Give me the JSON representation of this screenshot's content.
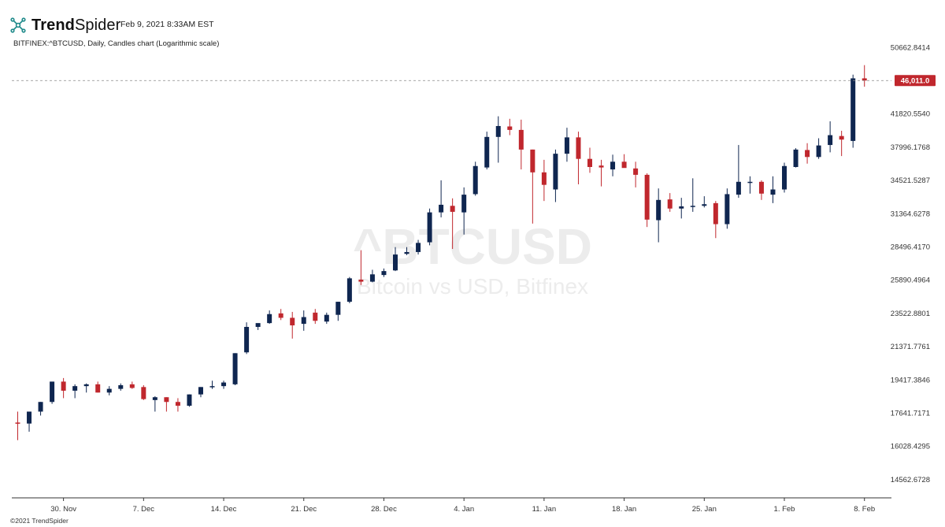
{
  "header": {
    "brand_bold": "Trend",
    "brand_regular": "Spider",
    "timestamp": "Feb 9, 2021 8:33AM EST",
    "subtitle": "BITFINEX:^BTCUSD, Daily, Candles chart (Logarithmic scale)",
    "logo_icon": "trendspider-logo-icon"
  },
  "footer": {
    "copyright": "©2021 TrendSpider"
  },
  "watermark": {
    "symbol": "^BTCUSD",
    "description": "Bitcoin vs USD, Bitfinex"
  },
  "colors": {
    "up": "#0f2650",
    "down": "#c0272d",
    "grid_line": "#888888",
    "price_tag": "#c0272d"
  },
  "chart_data": {
    "type": "candlestick",
    "title": "BITFINEX:^BTCUSD, Daily, Candles chart (Logarithmic scale)",
    "scale": "logarithmic",
    "ylim": [
      13800,
      53000
    ],
    "y_ticks": [
      "50662.8414",
      "41820.5540",
      "37996.1768",
      "34521.5287",
      "31364.6278",
      "28496.4170",
      "25890.4964",
      "23522.8801",
      "21371.7761",
      "19417.3846",
      "17641.7171",
      "16028.4295",
      "14562.6728"
    ],
    "x_tick_labels": [
      "30. Nov",
      "7. Dec",
      "14. Dec",
      "21. Dec",
      "28. Dec",
      "4. Jan",
      "11. Jan",
      "18. Jan",
      "25. Jan",
      "1. Feb",
      "8. Feb"
    ],
    "x_tick_index": [
      4,
      11,
      18,
      25,
      32,
      39,
      46,
      53,
      60,
      67,
      74
    ],
    "current_price": 46011.0,
    "current_price_label": "46,011.0",
    "candles": [
      {
        "date": "2020-11-26",
        "open": 17150,
        "high": 17700,
        "low": 16300,
        "close": 17100
      },
      {
        "date": "2020-11-27",
        "open": 17100,
        "high": 17450,
        "low": 16700,
        "close": 17700
      },
      {
        "date": "2020-11-28",
        "open": 17700,
        "high": 18200,
        "low": 17500,
        "close": 18200
      },
      {
        "date": "2020-11-29",
        "open": 18200,
        "high": 19300,
        "low": 18100,
        "close": 19300
      },
      {
        "date": "2020-11-30",
        "open": 19300,
        "high": 19500,
        "low": 18400,
        "close": 18800
      },
      {
        "date": "2020-12-01",
        "open": 18800,
        "high": 19150,
        "low": 18400,
        "close": 19050
      },
      {
        "date": "2020-12-02",
        "open": 19050,
        "high": 19200,
        "low": 18700,
        "close": 19150
      },
      {
        "date": "2020-12-03",
        "open": 19150,
        "high": 19300,
        "low": 18700,
        "close": 18700
      },
      {
        "date": "2020-12-04",
        "open": 18700,
        "high": 19050,
        "low": 18550,
        "close": 18900
      },
      {
        "date": "2020-12-05",
        "open": 18900,
        "high": 19200,
        "low": 18800,
        "close": 19100
      },
      {
        "date": "2020-12-06",
        "open": 19150,
        "high": 19300,
        "low": 18900,
        "close": 18950
      },
      {
        "date": "2020-12-07",
        "open": 19000,
        "high": 19100,
        "low": 18300,
        "close": 18350
      },
      {
        "date": "2020-12-08",
        "open": 18300,
        "high": 18500,
        "low": 17700,
        "close": 18450
      },
      {
        "date": "2020-12-09",
        "open": 18450,
        "high": 18450,
        "low": 17700,
        "close": 18200
      },
      {
        "date": "2020-12-10",
        "open": 18200,
        "high": 18400,
        "low": 17700,
        "close": 18000
      },
      {
        "date": "2020-12-11",
        "open": 18000,
        "high": 18600,
        "low": 17950,
        "close": 18600
      },
      {
        "date": "2020-12-12",
        "open": 18600,
        "high": 19000,
        "low": 18450,
        "close": 19000
      },
      {
        "date": "2020-12-13",
        "open": 19000,
        "high": 19350,
        "low": 18900,
        "close": 19050
      },
      {
        "date": "2020-12-14",
        "open": 19050,
        "high": 19350,
        "low": 18900,
        "close": 19250
      },
      {
        "date": "2020-12-15",
        "open": 19150,
        "high": 20950,
        "low": 19100,
        "close": 20950
      },
      {
        "date": "2020-12-16",
        "open": 21000,
        "high": 22900,
        "low": 20900,
        "close": 22600
      },
      {
        "date": "2020-12-17",
        "open": 22600,
        "high": 22700,
        "low": 22400,
        "close": 22850
      },
      {
        "date": "2020-12-18",
        "open": 22850,
        "high": 23700,
        "low": 22800,
        "close": 23450
      },
      {
        "date": "2020-12-19",
        "open": 23500,
        "high": 23800,
        "low": 23050,
        "close": 23200
      },
      {
        "date": "2020-12-20",
        "open": 23200,
        "high": 23600,
        "low": 21850,
        "close": 22700
      },
      {
        "date": "2020-12-21",
        "open": 22800,
        "high": 23700,
        "low": 22350,
        "close": 23250
      },
      {
        "date": "2020-12-22",
        "open": 23550,
        "high": 23800,
        "low": 22800,
        "close": 23000
      },
      {
        "date": "2020-12-23",
        "open": 22950,
        "high": 23550,
        "low": 22800,
        "close": 23400
      },
      {
        "date": "2020-12-24",
        "open": 23400,
        "high": 24300,
        "low": 23000,
        "close": 24300
      },
      {
        "date": "2020-12-25",
        "open": 24300,
        "high": 26100,
        "low": 24200,
        "close": 26000
      },
      {
        "date": "2020-12-26",
        "open": 25900,
        "high": 28200,
        "low": 25500,
        "close": 25750
      },
      {
        "date": "2020-12-27",
        "open": 25750,
        "high": 26650,
        "low": 25700,
        "close": 26300
      },
      {
        "date": "2020-12-28",
        "open": 26250,
        "high": 26750,
        "low": 26100,
        "close": 26550
      },
      {
        "date": "2020-12-29",
        "open": 26600,
        "high": 28450,
        "low": 26550,
        "close": 27850
      },
      {
        "date": "2020-12-30",
        "open": 27900,
        "high": 28450,
        "low": 27800,
        "close": 28050
      },
      {
        "date": "2020-12-31",
        "open": 28050,
        "high": 29050,
        "low": 27850,
        "close": 28800
      },
      {
        "date": "2021-01-01",
        "open": 28850,
        "high": 31800,
        "low": 28600,
        "close": 31450
      },
      {
        "date": "2021-01-02",
        "open": 31450,
        "high": 34500,
        "low": 31000,
        "close": 32150
      },
      {
        "date": "2021-01-03",
        "open": 32050,
        "high": 32750,
        "low": 28300,
        "close": 31500
      },
      {
        "date": "2021-01-04",
        "open": 31450,
        "high": 33800,
        "low": 29500,
        "close": 33100
      },
      {
        "date": "2021-01-05",
        "open": 33150,
        "high": 36400,
        "low": 33000,
        "close": 35950
      },
      {
        "date": "2021-01-06",
        "open": 35800,
        "high": 39700,
        "low": 35600,
        "close": 39100
      },
      {
        "date": "2021-01-07",
        "open": 39100,
        "high": 41500,
        "low": 36300,
        "close": 40350
      },
      {
        "date": "2021-01-08",
        "open": 40300,
        "high": 41200,
        "low": 39300,
        "close": 39900
      },
      {
        "date": "2021-01-09",
        "open": 39900,
        "high": 41100,
        "low": 35600,
        "close": 37700
      },
      {
        "date": "2021-01-10",
        "open": 37700,
        "high": 37700,
        "low": 30450,
        "close": 35300
      },
      {
        "date": "2021-01-11",
        "open": 35300,
        "high": 36600,
        "low": 32500,
        "close": 34050
      },
      {
        "date": "2021-01-12",
        "open": 33600,
        "high": 37700,
        "low": 32400,
        "close": 37250
      },
      {
        "date": "2021-01-13",
        "open": 37250,
        "high": 40150,
        "low": 36400,
        "close": 39050
      },
      {
        "date": "2021-01-14",
        "open": 39050,
        "high": 39700,
        "low": 34100,
        "close": 36700
      },
      {
        "date": "2021-01-15",
        "open": 36700,
        "high": 37900,
        "low": 35250,
        "close": 35850
      },
      {
        "date": "2021-01-16",
        "open": 36000,
        "high": 36600,
        "low": 33900,
        "close": 35800
      },
      {
        "date": "2021-01-17",
        "open": 35600,
        "high": 37150,
        "low": 34900,
        "close": 36400
      },
      {
        "date": "2021-01-18",
        "open": 36400,
        "high": 37200,
        "low": 35800,
        "close": 35750
      },
      {
        "date": "2021-01-19",
        "open": 35700,
        "high": 36400,
        "low": 33800,
        "close": 35050
      },
      {
        "date": "2021-01-20",
        "open": 35050,
        "high": 35200,
        "low": 30150,
        "close": 30800
      },
      {
        "date": "2021-01-21",
        "open": 30750,
        "high": 33700,
        "low": 28850,
        "close": 32600
      },
      {
        "date": "2021-01-22",
        "open": 32650,
        "high": 33250,
        "low": 31500,
        "close": 31800
      },
      {
        "date": "2021-01-23",
        "open": 31800,
        "high": 32800,
        "low": 30900,
        "close": 32000
      },
      {
        "date": "2021-01-24",
        "open": 32000,
        "high": 34700,
        "low": 31500,
        "close": 32050
      },
      {
        "date": "2021-01-25",
        "open": 32050,
        "high": 32950,
        "low": 31900,
        "close": 32200
      },
      {
        "date": "2021-01-26",
        "open": 32300,
        "high": 32500,
        "low": 29200,
        "close": 30400
      },
      {
        "date": "2021-01-27",
        "open": 30400,
        "high": 33700,
        "low": 30000,
        "close": 33150
      },
      {
        "date": "2021-01-28",
        "open": 33100,
        "high": 38200,
        "low": 32800,
        "close": 34350
      },
      {
        "date": "2021-01-29",
        "open": 34250,
        "high": 34900,
        "low": 33200,
        "close": 34350
      },
      {
        "date": "2021-01-30",
        "open": 34350,
        "high": 34500,
        "low": 32600,
        "close": 33200
      },
      {
        "date": "2021-01-31",
        "open": 33100,
        "high": 34900,
        "low": 32300,
        "close": 33600
      },
      {
        "date": "2021-02-01",
        "open": 33600,
        "high": 36300,
        "low": 33300,
        "close": 35950
      },
      {
        "date": "2021-02-02",
        "open": 35850,
        "high": 37850,
        "low": 35800,
        "close": 37700
      },
      {
        "date": "2021-02-03",
        "open": 37650,
        "high": 38400,
        "low": 36200,
        "close": 36900
      },
      {
        "date": "2021-02-04",
        "open": 36900,
        "high": 38950,
        "low": 36700,
        "close": 38150
      },
      {
        "date": "2021-02-05",
        "open": 38200,
        "high": 40900,
        "low": 37400,
        "close": 39300
      },
      {
        "date": "2021-02-06",
        "open": 39200,
        "high": 39800,
        "low": 37000,
        "close": 38800
      },
      {
        "date": "2021-02-07",
        "open": 38650,
        "high": 46800,
        "low": 37900,
        "close": 46300
      },
      {
        "date": "2021-02-08",
        "open": 46300,
        "high": 48100,
        "low": 45200,
        "close": 46011
      }
    ]
  }
}
